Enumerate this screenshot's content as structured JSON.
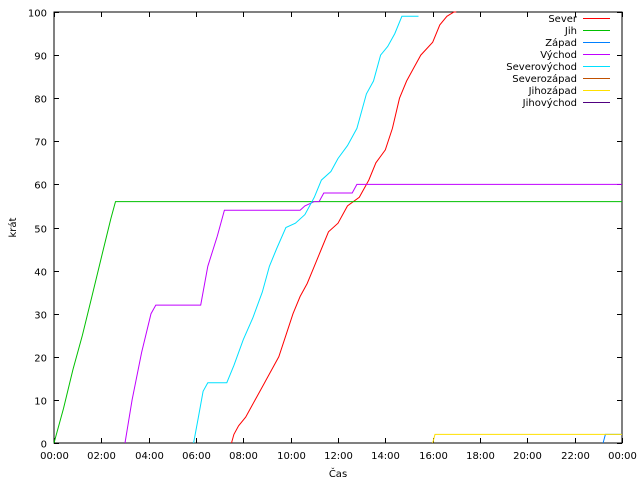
{
  "chart_data": {
    "type": "line",
    "xlabel": "Čas",
    "ylabel": "krát",
    "xlim": [
      0,
      24
    ],
    "ylim": [
      0,
      100
    ],
    "x_ticks": [
      {
        "value": 0,
        "label": "00:00"
      },
      {
        "value": 2,
        "label": "02:00"
      },
      {
        "value": 4,
        "label": "04:00"
      },
      {
        "value": 6,
        "label": "06:00"
      },
      {
        "value": 8,
        "label": "08:00"
      },
      {
        "value": 10,
        "label": "10:00"
      },
      {
        "value": 12,
        "label": "12:00"
      },
      {
        "value": 14,
        "label": "14:00"
      },
      {
        "value": 16,
        "label": "16:00"
      },
      {
        "value": 18,
        "label": "18:00"
      },
      {
        "value": 20,
        "label": "20:00"
      },
      {
        "value": 22,
        "label": "22:00"
      },
      {
        "value": 24,
        "label": "00:00"
      }
    ],
    "y_ticks": [
      0,
      10,
      20,
      30,
      40,
      50,
      60,
      70,
      80,
      90,
      100
    ],
    "grid": false,
    "legend_position": "top-right",
    "series": [
      {
        "name": "Sever",
        "color": "#ff0000",
        "points": [
          [
            7.5,
            0
          ],
          [
            7.6,
            2
          ],
          [
            7.8,
            4
          ],
          [
            8.1,
            6
          ],
          [
            8.3,
            8
          ],
          [
            8.6,
            11
          ],
          [
            8.9,
            14
          ],
          [
            9.2,
            17
          ],
          [
            9.5,
            20
          ],
          [
            9.8,
            25
          ],
          [
            10.1,
            30
          ],
          [
            10.4,
            34
          ],
          [
            10.7,
            37
          ],
          [
            11.0,
            41
          ],
          [
            11.3,
            45
          ],
          [
            11.6,
            49
          ],
          [
            12.0,
            51
          ],
          [
            12.4,
            55
          ],
          [
            12.9,
            57
          ],
          [
            13.3,
            61
          ],
          [
            13.6,
            65
          ],
          [
            14.0,
            68
          ],
          [
            14.3,
            73
          ],
          [
            14.6,
            80
          ],
          [
            14.9,
            84
          ],
          [
            15.2,
            87
          ],
          [
            15.5,
            90
          ],
          [
            16.0,
            93
          ],
          [
            16.3,
            97
          ],
          [
            16.6,
            99
          ],
          [
            16.9,
            100
          ],
          [
            17.0,
            100
          ]
        ]
      },
      {
        "name": "Jih",
        "color": "#00c000",
        "points": [
          [
            0.0,
            0
          ],
          [
            0.4,
            8
          ],
          [
            0.8,
            17
          ],
          [
            1.2,
            25
          ],
          [
            1.6,
            34
          ],
          [
            2.0,
            43
          ],
          [
            2.4,
            52
          ],
          [
            2.6,
            56
          ],
          [
            24.0,
            56
          ]
        ]
      },
      {
        "name": "Západ",
        "color": "#0080ff",
        "points": [
          [
            23.2,
            0
          ],
          [
            23.3,
            2
          ],
          [
            24.0,
            2
          ]
        ]
      },
      {
        "name": "Východ",
        "color": "#c000ff",
        "points": [
          [
            3.0,
            0
          ],
          [
            3.3,
            10
          ],
          [
            3.7,
            21
          ],
          [
            4.1,
            30
          ],
          [
            4.3,
            32
          ],
          [
            5.4,
            32
          ],
          [
            5.5,
            32
          ],
          [
            6.2,
            32
          ],
          [
            6.5,
            41
          ],
          [
            6.9,
            48
          ],
          [
            7.2,
            54
          ],
          [
            8.2,
            54
          ],
          [
            9.4,
            54
          ],
          [
            10.4,
            54
          ],
          [
            10.6,
            55
          ],
          [
            11.0,
            56
          ],
          [
            11.2,
            56
          ],
          [
            11.4,
            58
          ],
          [
            12.6,
            58
          ],
          [
            12.8,
            60
          ],
          [
            14.0,
            60
          ],
          [
            24.0,
            60
          ]
        ]
      },
      {
        "name": "Severovýchod",
        "color": "#00e0ff",
        "points": [
          [
            5.9,
            0
          ],
          [
            6.1,
            6
          ],
          [
            6.3,
            12
          ],
          [
            6.5,
            14
          ],
          [
            7.3,
            14
          ],
          [
            7.6,
            18
          ],
          [
            8.0,
            24
          ],
          [
            8.4,
            29
          ],
          [
            8.8,
            35
          ],
          [
            9.1,
            41
          ],
          [
            9.4,
            45
          ],
          [
            9.8,
            50
          ],
          [
            10.2,
            51
          ],
          [
            10.6,
            53
          ],
          [
            11.0,
            57
          ],
          [
            11.3,
            61
          ],
          [
            11.7,
            63
          ],
          [
            12.0,
            66
          ],
          [
            12.4,
            69
          ],
          [
            12.8,
            73
          ],
          [
            13.2,
            81
          ],
          [
            13.5,
            84
          ],
          [
            13.8,
            90
          ],
          [
            14.1,
            92
          ],
          [
            14.4,
            95
          ],
          [
            14.7,
            99
          ],
          [
            15.4,
            99
          ]
        ]
      },
      {
        "name": "Severozápad",
        "color": "#c05000",
        "points": []
      },
      {
        "name": "Jihozápad",
        "color": "#ffe000",
        "points": [
          [
            16.0,
            0
          ],
          [
            16.1,
            2
          ],
          [
            24.0,
            2
          ]
        ]
      },
      {
        "name": "Jihovýchod",
        "color": "#500080",
        "points": []
      }
    ]
  }
}
